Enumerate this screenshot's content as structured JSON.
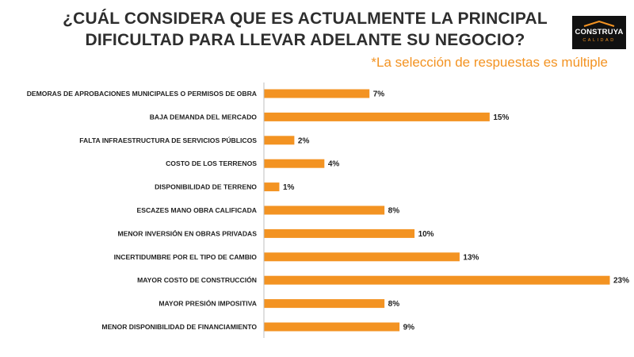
{
  "header": {
    "title_line1": "¿CUÁL CONSIDERA QUE ES ACTUALMENTE LA PRINCIPAL",
    "title_line2": "DIFICULTAD PARA LLEVAR ADELANTE SU NEGOCIO?",
    "note": "*La selección de respuestas es múltiple"
  },
  "logo": {
    "brand": "CONSTRUYA",
    "sub": "CALIDAD",
    "accent_color": "#f39322"
  },
  "colors": {
    "bar": "#f39322",
    "text": "#222222"
  },
  "chart_data": {
    "type": "bar",
    "orientation": "horizontal",
    "title": "¿CUÁL CONSIDERA QUE ES ACTUALMENTE LA PRINCIPAL DIFICULTAD PARA LLEVAR ADELANTE SU NEGOCIO?",
    "xlabel": "",
    "ylabel": "",
    "xlim": [
      0,
      23
    ],
    "grid": false,
    "unit": "%",
    "categories": [
      "DEMORAS DE APROBACIONES MUNICIPALES O PERMISOS DE OBRA",
      "BAJA DEMANDA DEL MERCADO",
      "FALTA INFRAESTRUCTURA DE SERVICIOS PÚBLICOS",
      "COSTO DE LOS TERRENOS",
      "DISPONIBILIDAD DE TERRENO",
      "ESCAZES MANO OBRA CALIFICADA",
      "MENOR INVERSIÓN EN OBRAS PRIVADAS",
      "INCERTIDUMBRE POR EL TIPO DE CAMBIO",
      "MAYOR COSTO DE CONSTRUCCIÓN",
      "MAYOR PRESIÓN IMPOSITIVA",
      "MENOR DISPONIBILIDAD DE FINANCIAMIENTO"
    ],
    "values": [
      7,
      15,
      2,
      4,
      1,
      8,
      10,
      13,
      23,
      8,
      9
    ],
    "value_labels": [
      "7%",
      "15%",
      "2%",
      "4%",
      "1%",
      "8%",
      "10%",
      "13%",
      "23%",
      "8%",
      "9%"
    ]
  }
}
